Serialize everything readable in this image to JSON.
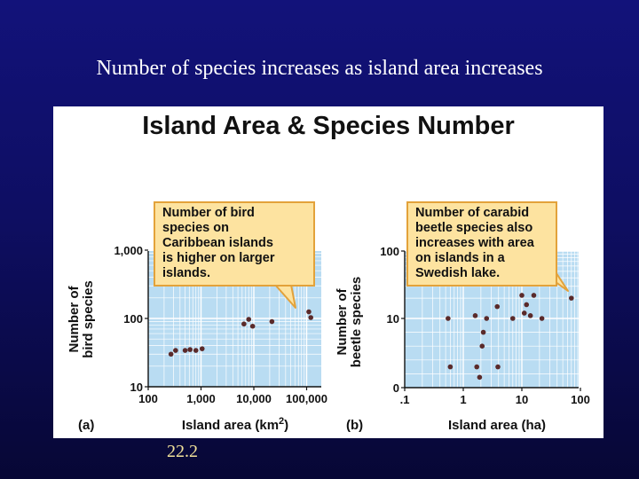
{
  "slide": {
    "title": "Number of species increases as island area increases",
    "number": "22.2"
  },
  "figure": {
    "title": "Island Area & Species Number"
  },
  "chart_data": [
    {
      "type": "scatter",
      "panel_label": "(a)",
      "xlabel_prefix": "Island area (km",
      "xlabel_sup": "2",
      "xlabel_suffix": ")",
      "ylabel_line1": "Number of",
      "ylabel_line2": "bird species",
      "x_scale": "log",
      "y_scale": "log",
      "xlim": [
        100,
        200000
      ],
      "ylim": [
        10,
        1000
      ],
      "x_ticks": [
        {
          "value": 100,
          "label": "100"
        },
        {
          "value": 1000,
          "label": "1,000"
        },
        {
          "value": 10000,
          "label": "10,000"
        },
        {
          "value": 100000,
          "label": "100,000"
        }
      ],
      "y_ticks": [
        {
          "value": 10,
          "label": "10"
        },
        {
          "value": 100,
          "label": "100"
        },
        {
          "value": 1000,
          "label": "1,000"
        }
      ],
      "points": [
        {
          "x": 270,
          "y": 30
        },
        {
          "x": 330,
          "y": 34
        },
        {
          "x": 500,
          "y": 34
        },
        {
          "x": 620,
          "y": 35
        },
        {
          "x": 800,
          "y": 34
        },
        {
          "x": 1050,
          "y": 36
        },
        {
          "x": 6500,
          "y": 83
        },
        {
          "x": 8000,
          "y": 97
        },
        {
          "x": 9500,
          "y": 77
        },
        {
          "x": 22000,
          "y": 90
        },
        {
          "x": 110000,
          "y": 125
        },
        {
          "x": 120000,
          "y": 103
        }
      ],
      "callout": "Number of bird\nspecies on\nCaribbean islands\nis higher on larger\nislands.",
      "colors": {
        "plot_bg": "#b9dcf2",
        "grid": "#ffffff",
        "point": "#5a2a2a"
      }
    },
    {
      "type": "scatter",
      "panel_label": "(b)",
      "xlabel": "Island area (ha)",
      "ylabel_line1": "Number of",
      "ylabel_line2": "beetle species",
      "x_scale": "log",
      "y_scale": "custom-nonlinear",
      "xlim": [
        0.1,
        100
      ],
      "ylim": [
        0,
        100
      ],
      "x_ticks": [
        {
          "value": 0.1,
          "label": ".1"
        },
        {
          "value": 1,
          "label": "1"
        },
        {
          "value": 10,
          "label": "10"
        },
        {
          "value": 100,
          "label": "100"
        }
      ],
      "y_ticks": [
        {
          "value": 0,
          "label": "0"
        },
        {
          "value": 10,
          "label": "10"
        },
        {
          "value": 100,
          "label": "100"
        }
      ],
      "points": [
        {
          "x": 0.55,
          "y": 10
        },
        {
          "x": 0.6,
          "y": 3
        },
        {
          "x": 1.6,
          "y": 11
        },
        {
          "x": 1.7,
          "y": 3
        },
        {
          "x": 1.9,
          "y": 1.5
        },
        {
          "x": 2.1,
          "y": 6
        },
        {
          "x": 2.2,
          "y": 8
        },
        {
          "x": 2.5,
          "y": 10
        },
        {
          "x": 3.8,
          "y": 15
        },
        {
          "x": 3.9,
          "y": 3
        },
        {
          "x": 7.0,
          "y": 10
        },
        {
          "x": 10,
          "y": 22
        },
        {
          "x": 11,
          "y": 12
        },
        {
          "x": 12,
          "y": 16
        },
        {
          "x": 14,
          "y": 11
        },
        {
          "x": 16,
          "y": 22
        },
        {
          "x": 22,
          "y": 10
        },
        {
          "x": 70,
          "y": 20
        }
      ],
      "callout": "Number of carabid\nbeetle species also\nincreases with area\non islands in a\nSwedish lake.",
      "colors": {
        "plot_bg": "#b9dcf2",
        "grid": "#ffffff",
        "point": "#5a2a2a"
      }
    }
  ]
}
